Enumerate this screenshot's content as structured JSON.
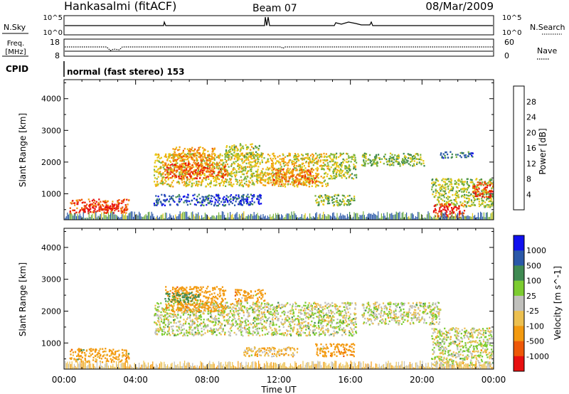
{
  "header": {
    "station": "Hankasalmi (fitACF)",
    "beam": "Beam 07",
    "date": "08/Mar/2009"
  },
  "top_panels": {
    "nsky_label": "N.Sky",
    "nsearch_label": "N.Search",
    "noise_tick_high": "10^5",
    "noise_tick_low": "10^0",
    "freq_label_1": "Freq.",
    "freq_label_2": "[MHz]",
    "freq_ticks": [
      "18",
      "8"
    ],
    "nave_label": "Nave",
    "nave_ticks": [
      "60",
      "0"
    ],
    "cpid_label": "CPID",
    "cpid_value": "normal (fast stereo) 153"
  },
  "x_axis": {
    "label": "Time UT",
    "ticks": [
      "00:00",
      "04:00",
      "08:00",
      "12:00",
      "16:00",
      "20:00",
      "00:00"
    ]
  },
  "colors": {
    "power": [
      "#1010ee",
      "#2a58a8",
      "#3f8a52",
      "#7ab33e",
      "#e8c818",
      "#f39a10",
      "#ee5808",
      "#e81010"
    ],
    "velocity": [
      "#e81010",
      "#ee5808",
      "#f39a10",
      "#ecc050",
      "#c0c0bc",
      "#7ccc30",
      "#3f8a52",
      "#2a58a8",
      "#1010ee"
    ]
  },
  "chart_data": [
    {
      "type": "heatmap",
      "panel": "power",
      "ylabel": "Slant Range [km]",
      "y_ticks": [
        1000,
        2000,
        3000,
        4000
      ],
      "ylim": [
        180,
        4600
      ],
      "xlim_hours": [
        0,
        24
      ],
      "colorbar": {
        "label": "Power [dB]",
        "ticks": [
          "4",
          "8",
          "12",
          "16",
          "20",
          "24",
          "28"
        ],
        "range": [
          0,
          32
        ]
      },
      "regions": [
        {
          "t0": 0.3,
          "t1": 3.6,
          "r0": 400,
          "r1": 850,
          "level": 27
        },
        {
          "t0": 1.0,
          "t1": 3.0,
          "r0": 500,
          "r1": 700,
          "level": 31
        },
        {
          "t0": 5.0,
          "t1": 14.7,
          "r0": 1250,
          "r1": 2300,
          "level": 18
        },
        {
          "t0": 5.6,
          "t1": 9.0,
          "r0": 1500,
          "r1": 2000,
          "level": 26
        },
        {
          "t0": 6.0,
          "t1": 8.4,
          "r0": 2050,
          "r1": 2500,
          "level": 22
        },
        {
          "t0": 9.0,
          "t1": 11.0,
          "r0": 2100,
          "r1": 2600,
          "level": 16
        },
        {
          "t0": 11.6,
          "t1": 14.2,
          "r0": 1300,
          "r1": 1800,
          "level": 24
        },
        {
          "t0": 14.7,
          "t1": 16.3,
          "r0": 1500,
          "r1": 2300,
          "level": 16
        },
        {
          "t0": 5.0,
          "t1": 11.0,
          "r0": 650,
          "r1": 1000,
          "level": 5
        },
        {
          "t0": 14.0,
          "t1": 16.2,
          "r0": 650,
          "r1": 1000,
          "level": 14
        },
        {
          "t0": 16.6,
          "t1": 20.2,
          "r0": 1900,
          "r1": 2300,
          "level": 14
        },
        {
          "t0": 21.0,
          "t1": 22.8,
          "r0": 2150,
          "r1": 2350,
          "level": 8
        },
        {
          "t0": 20.5,
          "t1": 24.0,
          "r0": 600,
          "r1": 1500,
          "level": 15
        },
        {
          "t0": 20.6,
          "t1": 22.4,
          "r0": 260,
          "r1": 700,
          "level": 30
        },
        {
          "t0": 22.8,
          "t1": 24.0,
          "r0": 900,
          "r1": 1400,
          "level": 27
        }
      ]
    },
    {
      "type": "heatmap",
      "panel": "velocity",
      "ylabel": "Slant Range [km]",
      "y_ticks": [
        1000,
        2000,
        3000,
        4000
      ],
      "ylim": [
        180,
        4600
      ],
      "xlim_hours": [
        0,
        24
      ],
      "colorbar": {
        "label": "Velocity [m s^-1]",
        "ticks": [
          "1000",
          "500",
          "100",
          "25",
          "-25",
          "-100",
          "-500",
          "-1000"
        ]
      },
      "regions": [
        {
          "t0": 0.3,
          "t1": 3.6,
          "r0": 420,
          "r1": 850,
          "velocity": -150
        },
        {
          "t0": 5.0,
          "t1": 16.3,
          "r0": 1250,
          "r1": 2300,
          "velocity": 0
        },
        {
          "t0": 5.6,
          "t1": 9.0,
          "r0": 2000,
          "r1": 2800,
          "velocity": -300
        },
        {
          "t0": 5.6,
          "t1": 7.5,
          "r0": 2300,
          "r1": 2600,
          "velocity": 150
        },
        {
          "t0": 9.5,
          "t1": 11.2,
          "r0": 2300,
          "r1": 2700,
          "velocity": -200
        },
        {
          "t0": 14.0,
          "t1": 16.2,
          "r0": 600,
          "r1": 1000,
          "velocity": -400
        },
        {
          "t0": 10.0,
          "t1": 13.0,
          "r0": 600,
          "r1": 900,
          "velocity": -80
        },
        {
          "t0": 16.6,
          "t1": 21.0,
          "r0": 1600,
          "r1": 2300,
          "velocity": 0
        },
        {
          "t0": 20.5,
          "t1": 24.0,
          "r0": 300,
          "r1": 1500,
          "velocity": 0
        }
      ]
    }
  ]
}
